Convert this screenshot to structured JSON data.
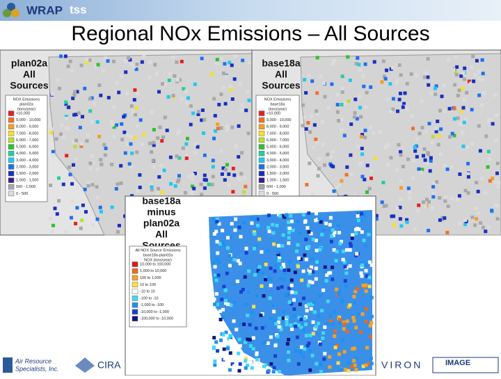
{
  "header": {
    "logo": "WRAP",
    "logo_suffix": "tss"
  },
  "title": "Regional NOx Emissions – All Sources",
  "panels": [
    {
      "label": [
        "plan02a",
        "All",
        "Sources"
      ],
      "legend": {
        "title": [
          "NOX Emissions",
          "plan02a",
          "(tons/year)"
        ],
        "items": [
          {
            "label": ">10,000",
            "color": "#e8201c"
          },
          {
            "label": "9,000 - 10,000",
            "color": "#f0702a"
          },
          {
            "label": "8,000 - 9,000",
            "color": "#f4a020"
          },
          {
            "label": "7,000 - 8,000",
            "color": "#f8e020"
          },
          {
            "label": "6,000 - 7,000",
            "color": "#b8e030"
          },
          {
            "label": "5,000 - 6,000",
            "color": "#30c030"
          },
          {
            "label": "4,000 - 5,000",
            "color": "#20d0a0"
          },
          {
            "label": "3,000 - 4,000",
            "color": "#20c8f0"
          },
          {
            "label": "2,000 - 3,000",
            "color": "#2070f0"
          },
          {
            "label": "1,500 - 2,000",
            "color": "#1830c0"
          },
          {
            "label": "1,000 - 1,500",
            "color": "#3c1c90"
          },
          {
            "label": "500 - 1,000",
            "color": "#a8a8a8"
          },
          {
            "label": "0 - 500",
            "color": "#dcdcdc"
          }
        ]
      }
    },
    {
      "label": [
        "base18a",
        "All",
        "Sources"
      ],
      "legend": {
        "title": [
          "NOX Emissions",
          "base18a",
          "(tons/year)"
        ],
        "items": [
          {
            "label": ">10,000",
            "color": "#e8201c"
          },
          {
            "label": "9,000 - 10,000",
            "color": "#f0702a"
          },
          {
            "label": "8,000 - 9,000",
            "color": "#f4a020"
          },
          {
            "label": "7,000 - 8,000",
            "color": "#f8e020"
          },
          {
            "label": "6,000 - 7,000",
            "color": "#b8e030"
          },
          {
            "label": "5,000 - 6,000",
            "color": "#30c030"
          },
          {
            "label": "4,000 - 5,000",
            "color": "#20d0a0"
          },
          {
            "label": "3,000 - 4,000",
            "color": "#20c8f0"
          },
          {
            "label": "2,000 - 3,000",
            "color": "#2070f0"
          },
          {
            "label": "1,500 - 2,000",
            "color": "#1830c0"
          },
          {
            "label": "1,000 - 1,500",
            "color": "#3c1c90"
          },
          {
            "label": "500 - 1,000",
            "color": "#a8a8a8"
          },
          {
            "label": "0 - 500",
            "color": "#dcdcdc"
          }
        ]
      }
    },
    {
      "label": [
        "base18a",
        "minus",
        "plan02a",
        "All",
        "Sources"
      ],
      "legend": {
        "title": [
          "All NOX Source Emissions",
          "base18a-plan02a",
          "NOX (tons/year)"
        ],
        "items": [
          {
            "label": "10,000 to 100,000",
            "color": "#e01818"
          },
          {
            "label": "1,000 to 10,000",
            "color": "#f06818"
          },
          {
            "label": "100 to 1,000",
            "color": "#f8a020"
          },
          {
            "label": "10 to 100",
            "color": "#f8e048"
          },
          {
            "label": "-10 to 10",
            "color": "#ffffff"
          },
          {
            "label": "-100 to -10",
            "color": "#40d8f8"
          },
          {
            "label": "-1,000 to -100",
            "color": "#2090f0"
          },
          {
            "label": "-10,000 to -1,000",
            "color": "#1840d0"
          },
          {
            "label": "-100,000 to -10,000",
            "color": "#101880"
          }
        ]
      }
    }
  ],
  "footer": {
    "logos": [
      "Air Resource",
      "Specialists, Inc.",
      "CIRA",
      "VIRON",
      "IMAGE"
    ]
  }
}
